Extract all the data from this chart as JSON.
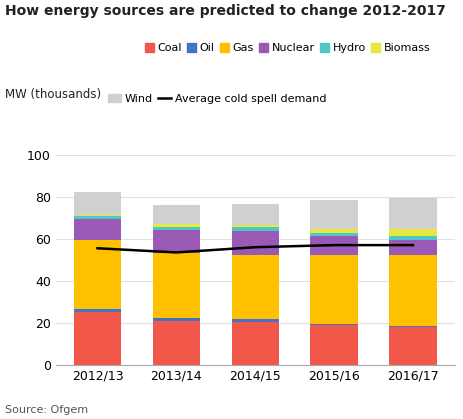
{
  "title": "How energy sources are predicted to change 2012-2017",
  "ylabel": "MW (thousands)",
  "source": "Source: Ofgem",
  "categories": [
    "2012/13",
    "2013/14",
    "2014/15",
    "2015/16",
    "2016/17"
  ],
  "series": {
    "Coal": [
      25,
      21,
      20.5,
      19,
      18
    ],
    "Oil": [
      1.5,
      1,
      1,
      0.5,
      0.5
    ],
    "Gas": [
      33,
      31,
      31,
      33,
      34
    ],
    "Nuclear": [
      10,
      11,
      11,
      9,
      7
    ],
    "Hydro": [
      1.5,
      1.5,
      2,
      1.5,
      2
    ],
    "Biomass": [
      0.5,
      1.5,
      1,
      1.5,
      3
    ],
    "Wind": [
      11,
      9,
      10,
      14,
      15
    ]
  },
  "colors": {
    "Coal": "#f1584a",
    "Oil": "#4472c4",
    "Gas": "#ffc000",
    "Nuclear": "#9b59b6",
    "Hydro": "#4dc8c8",
    "Biomass": "#e8e840",
    "Wind": "#d0d0d0"
  },
  "avg_cold_demand": [
    55.5,
    53.5,
    56,
    57,
    57
  ],
  "ylim": [
    0,
    100
  ],
  "yticks": [
    0,
    20,
    40,
    60,
    80,
    100
  ],
  "legend_row1": [
    "Coal",
    "Oil",
    "Gas",
    "Nuclear",
    "Hydro",
    "Biomass"
  ],
  "legend_row2_bar": "Wind",
  "avg_line_label": "Average cold spell demand",
  "figsize": [
    4.64,
    4.19
  ],
  "dpi": 100,
  "bg_color": "#ffffff",
  "grid_color": "#ffffff",
  "bar_width": 0.6
}
